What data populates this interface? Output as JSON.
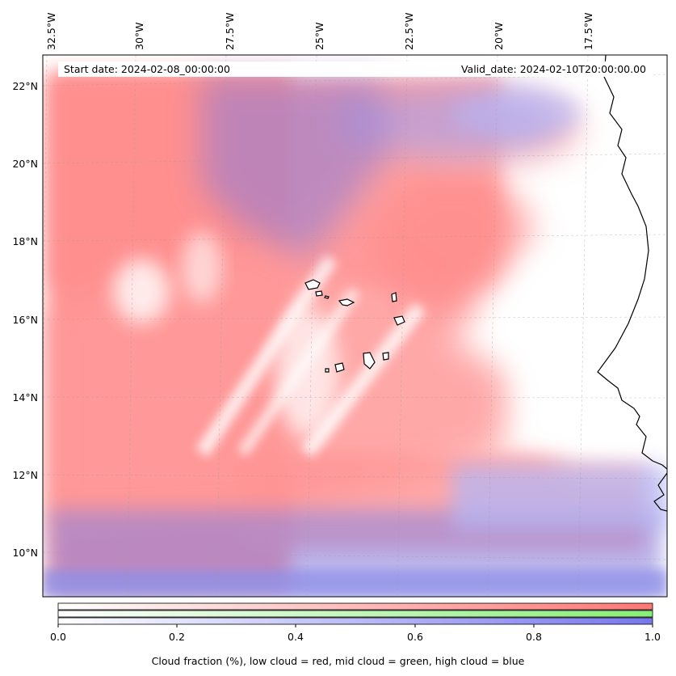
{
  "header": {
    "start_date": "Start date: 2024-02-08_00:00:00",
    "valid_date": "Valid_date: 2024-02-10T20:00:00.00"
  },
  "axes": {
    "lon_ticks": [
      "32.5°W",
      "30°W",
      "27.5°W",
      "25°W",
      "22.5°W",
      "20°W",
      "17.5°W"
    ],
    "lat_ticks": [
      "22°N",
      "20°N",
      "18°N",
      "16°N",
      "14°N",
      "12°N",
      "10°N"
    ]
  },
  "colorbar": {
    "ticks": [
      "0.0",
      "0.2",
      "0.4",
      "0.6",
      "0.8",
      "1.0"
    ],
    "label": "Cloud fraction (%), low cloud = red, mid cloud = green, high cloud = blue",
    "colors": {
      "low": "#ff7777",
      "mid": "#88ee88",
      "high": "#7777ee"
    }
  }
}
